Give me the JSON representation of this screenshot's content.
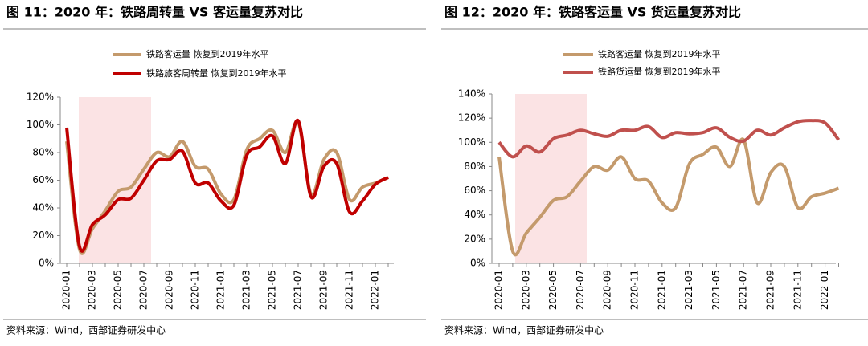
{
  "chart_data": [
    {
      "type": "line",
      "title": "图 11：2020 年：铁路周转量 VS 客运量复苏对比",
      "source": "资料来源：Wind，西部证券研发中心",
      "categories": [
        "2020-01",
        null,
        "2020-03",
        null,
        "2020-05",
        null,
        "2020-07",
        null,
        "2020-09",
        null,
        "2020-11",
        null,
        "2021-01",
        null,
        "2021-03",
        null,
        "2021-05",
        null,
        "2021-07",
        null,
        "2021-09",
        null,
        "2021-11",
        null,
        "2022-01",
        null
      ],
      "series": [
        {
          "name": "铁路客运量 恢复到2019年水平",
          "color": "#c49a6c",
          "values": [
            88,
            10,
            25,
            38,
            52,
            55,
            68,
            80,
            77,
            88,
            70,
            68,
            50,
            46,
            82,
            90,
            96,
            80,
            102,
            50,
            75,
            80,
            46,
            55,
            58,
            62
          ]
        },
        {
          "name": "铁路旅客周转量 恢复到2019年水平",
          "color": "#c00000",
          "values": [
            98,
            12,
            28,
            35,
            46,
            47,
            60,
            74,
            75,
            81,
            58,
            58,
            45,
            42,
            78,
            84,
            92,
            72,
            103,
            48,
            70,
            72,
            37,
            45,
            57,
            62
          ]
        }
      ],
      "ylim": [
        0,
        120
      ],
      "yticks": [
        {
          "value": 0,
          "label": "0%"
        },
        {
          "value": 20,
          "label": "20%"
        },
        {
          "value": 40,
          "label": "40%"
        },
        {
          "value": 60,
          "label": "60%"
        },
        {
          "value": 80,
          "label": "80%"
        },
        {
          "value": 100,
          "label": "100%"
        },
        {
          "value": 120,
          "label": "120%"
        }
      ]
    },
    {
      "type": "line",
      "title": "图 12：2020 年：铁路客运量 VS 货运量复苏对比",
      "source": "资料来源：Wind，西部证券研发中心",
      "categories": [
        "2020-01",
        null,
        "2020-03",
        null,
        "2020-05",
        null,
        "2020-07",
        null,
        "2020-09",
        null,
        "2020-11",
        null,
        "2021-01",
        null,
        "2021-03",
        null,
        "2021-05",
        null,
        "2021-07",
        null,
        "2021-09",
        null,
        "2021-11",
        null,
        "2022-01",
        null
      ],
      "series": [
        {
          "name": "铁路客运量 恢复到2019年水平",
          "color": "#c49a6c",
          "values": [
            88,
            10,
            25,
            38,
            52,
            55,
            68,
            80,
            77,
            88,
            70,
            68,
            50,
            46,
            82,
            90,
            96,
            80,
            102,
            50,
            75,
            80,
            46,
            55,
            58,
            62
          ]
        },
        {
          "name": "铁路货运量 恢复到2019年水平",
          "color": "#c0504d",
          "values": [
            100,
            88,
            97,
            92,
            103,
            106,
            110,
            107,
            105,
            110,
            110,
            113,
            104,
            108,
            107,
            108,
            112,
            104,
            101,
            110,
            106,
            112,
            117,
            118,
            116,
            102
          ]
        }
      ],
      "ylim": [
        0,
        140
      ],
      "yticks": [
        {
          "value": 0,
          "label": "0%"
        },
        {
          "value": 20,
          "label": "20%"
        },
        {
          "value": 40,
          "label": "40%"
        },
        {
          "value": 60,
          "label": "60%"
        },
        {
          "value": 80,
          "label": "80%"
        },
        {
          "value": 100,
          "label": "100%"
        },
        {
          "value": 120,
          "label": "120%"
        },
        {
          "value": 140,
          "label": "140%"
        }
      ]
    }
  ]
}
